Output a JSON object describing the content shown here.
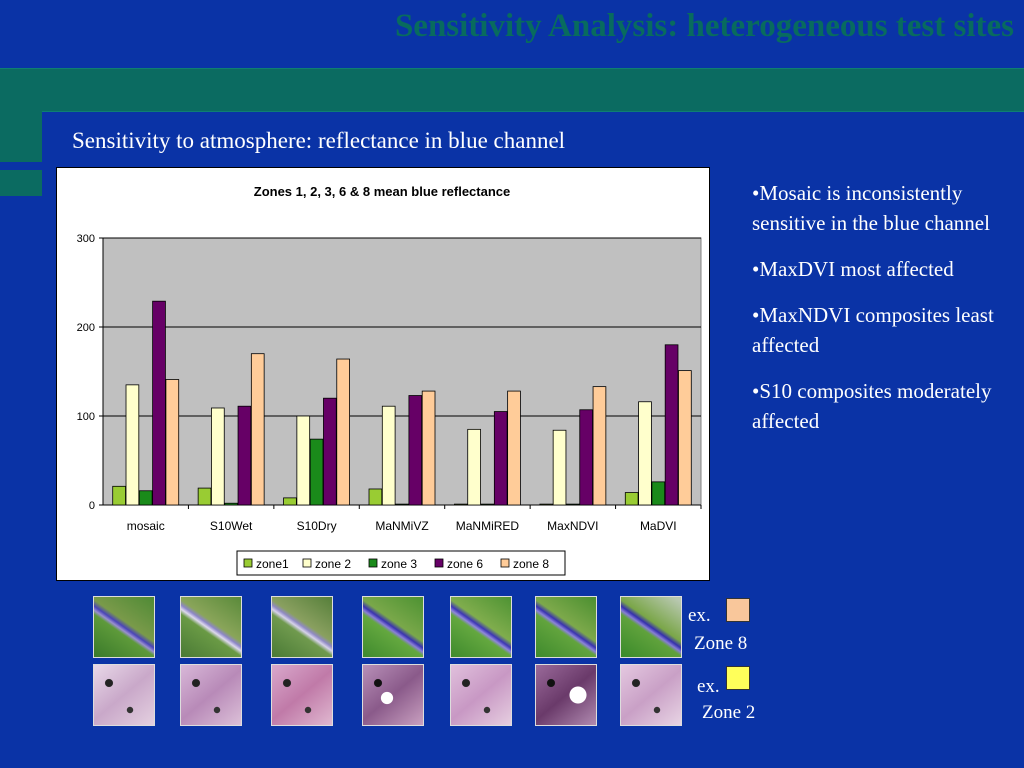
{
  "slide": {
    "title": "Sensitivity Analysis: heterogeneous test sites",
    "subtitle": "Sensitivity to atmosphere: reflectance in blue channel"
  },
  "bullets": [
    "•Mosaic is inconsistently sensitive in the blue channel",
    "•MaxDVI most affected",
    "•MaxNDVI composites least affected",
    "•S10 composites moderately affected"
  ],
  "examples": [
    {
      "ex_label": "ex.",
      "zone_label": "Zone 8",
      "color": "#f9c79b"
    },
    {
      "ex_label": "ex.",
      "zone_label": "Zone 2",
      "color": "#ffff5a"
    }
  ],
  "thumbnails": {
    "row1": [
      "composite-mosaic-1",
      "composite-s10wet-1",
      "composite-s10dry-1",
      "composite-manmivz-1",
      "composite-manmired-1",
      "composite-maxndvi-1",
      "composite-madvi-1"
    ],
    "row2": [
      "composite-mosaic-2",
      "composite-s10wet-2",
      "composite-s10dry-2",
      "composite-manmivz-2",
      "composite-manmired-2",
      "composite-maxndvi-2",
      "composite-madvi-2"
    ]
  },
  "chart_data": {
    "type": "bar",
    "title": "Zones 1, 2, 3, 6 & 8 mean blue reflectance",
    "xlabel": "",
    "ylabel": "",
    "ylim": [
      0,
      300
    ],
    "yticks": [
      0,
      100,
      200,
      300
    ],
    "grid": true,
    "legend_position": "bottom",
    "categories": [
      "mosaic",
      "S10Wet",
      "S10Dry",
      "MaNMiVZ",
      "MaNMiRED",
      "MaxNDVI",
      "MaDVI"
    ],
    "series": [
      {
        "name": "zone1",
        "color": "#99cc33",
        "values": [
          21,
          19,
          8,
          18,
          1,
          1,
          14
        ]
      },
      {
        "name": "zone 2",
        "color": "#ffffcc",
        "values": [
          135,
          109,
          100,
          111,
          85,
          84,
          116
        ]
      },
      {
        "name": "zone 3",
        "color": "#1a8a1a",
        "values": [
          16,
          2,
          74,
          1,
          1,
          1,
          26
        ]
      },
      {
        "name": "zone 6",
        "color": "#660066",
        "values": [
          229,
          111,
          120,
          123,
          105,
          107,
          180
        ]
      },
      {
        "name": "zone 8",
        "color": "#ffcc99",
        "values": [
          141,
          170,
          164,
          128,
          128,
          133,
          151
        ]
      }
    ]
  }
}
